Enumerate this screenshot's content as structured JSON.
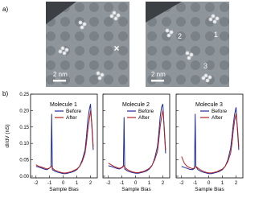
{
  "panels": [
    "a)",
    "b)"
  ],
  "images": [
    {
      "scale_bar": "2 nm",
      "marker": "×"
    },
    {
      "scale_bar": "2 nm",
      "labels": [
        "2",
        "1",
        "3"
      ]
    }
  ],
  "chart_data": [
    {
      "type": "line",
      "legend_title": "Molecule 1",
      "ylabel": "dI/dV (nS)",
      "xlabel": "Sample Bias",
      "x": [
        -2,
        -1.8,
        -1.6,
        -1.4,
        -1.2,
        -1.0,
        -0.9,
        -0.85,
        -0.8,
        -0.6,
        -0.4,
        -0.2,
        0,
        0.2,
        0.4,
        0.6,
        0.8,
        1.0,
        1.2,
        1.4,
        1.6,
        1.7,
        1.8,
        1.9,
        2.0,
        2.1,
        2.2
      ],
      "xlim": [
        -2.4,
        2.5
      ],
      "xticks": [
        -2,
        -1,
        0,
        1,
        2
      ],
      "ylim": [
        -0.005,
        0.25
      ],
      "yticks": [
        {
          "value": 0,
          "label": "0.00"
        },
        {
          "value": 0.05,
          "label": "0.05"
        },
        {
          "value": 0.1,
          "label": "0.10"
        },
        {
          "value": 0.15,
          "label": "0.15"
        },
        {
          "value": 0.2,
          "label": "0.20"
        },
        {
          "value": 0.25,
          "label": "0.25"
        }
      ],
      "series": [
        {
          "name": "Before",
          "color": "#1f2a9c",
          "values": [
            0.03,
            0.028,
            0.025,
            0.022,
            0.02,
            0.025,
            0.03,
            0.19,
            0.02,
            0.015,
            0.012,
            0.01,
            0.008,
            0.008,
            0.01,
            0.012,
            0.015,
            0.02,
            0.03,
            0.05,
            0.08,
            0.12,
            0.17,
            0.2,
            0.22,
            0.15,
            0.08
          ]
        },
        {
          "name": "After",
          "color": "#b22222",
          "values": [
            0.035,
            0.03,
            0.028,
            0.025,
            0.022,
            0.025,
            0.03,
            0.03,
            0.025,
            0.018,
            0.015,
            0.012,
            0.01,
            0.01,
            0.012,
            0.014,
            0.018,
            0.022,
            0.03,
            0.045,
            0.07,
            0.1,
            0.14,
            0.17,
            0.2,
            0.16,
            0.09
          ]
        }
      ]
    },
    {
      "type": "line",
      "legend_title": "Molecule 2",
      "xlabel": "Sample Bias",
      "x": [
        -2,
        -1.8,
        -1.6,
        -1.4,
        -1.2,
        -1.0,
        -0.9,
        -0.85,
        -0.8,
        -0.6,
        -0.4,
        -0.2,
        0,
        0.2,
        0.4,
        0.6,
        0.8,
        1.0,
        1.2,
        1.4,
        1.6,
        1.7,
        1.8,
        1.9,
        2.0,
        2.1,
        2.2
      ],
      "xlim": [
        -2.4,
        2.5
      ],
      "xticks": [
        -2,
        -1,
        0,
        1,
        2
      ],
      "ylim": [
        -0.005,
        0.25
      ],
      "yticks": [
        0,
        0.05,
        0.1,
        0.15,
        0.2,
        0.25
      ],
      "series": [
        {
          "name": "Before",
          "color": "#1f2a9c",
          "values": [
            0.032,
            0.03,
            0.027,
            0.024,
            0.022,
            0.026,
            0.03,
            0.18,
            0.022,
            0.016,
            0.013,
            0.011,
            0.009,
            0.009,
            0.011,
            0.013,
            0.016,
            0.022,
            0.032,
            0.055,
            0.09,
            0.13,
            0.18,
            0.21,
            0.22,
            0.14,
            0.07
          ]
        },
        {
          "name": "After",
          "color": "#b22222",
          "values": [
            0.04,
            0.035,
            0.03,
            0.027,
            0.024,
            0.027,
            0.032,
            0.032,
            0.027,
            0.02,
            0.016,
            0.013,
            0.011,
            0.011,
            0.013,
            0.015,
            0.019,
            0.024,
            0.033,
            0.05,
            0.075,
            0.11,
            0.15,
            0.18,
            0.2,
            0.15,
            0.08
          ]
        }
      ]
    },
    {
      "type": "line",
      "legend_title": "Molecule 3",
      "xlabel": "Sample Bias",
      "x": [
        -2,
        -1.8,
        -1.6,
        -1.4,
        -1.2,
        -1.05,
        -1.0,
        -0.95,
        -0.8,
        -0.6,
        -0.4,
        -0.2,
        0,
        0.2,
        0.4,
        0.6,
        0.8,
        1.0,
        1.2,
        1.4,
        1.6,
        1.7,
        1.8,
        1.9,
        2.0,
        2.1,
        2.2
      ],
      "xlim": [
        -2.4,
        2.5
      ],
      "xticks": [
        -2,
        -1,
        0,
        1,
        2
      ],
      "ylim": [
        -0.005,
        0.25
      ],
      "yticks": [
        0,
        0.05,
        0.1,
        0.15,
        0.2,
        0.25
      ],
      "series": [
        {
          "name": "Before",
          "color": "#1f2a9c",
          "values": [
            0.03,
            0.027,
            0.024,
            0.021,
            0.02,
            0.024,
            0.19,
            0.03,
            0.02,
            0.015,
            0.012,
            0.01,
            0.008,
            0.008,
            0.01,
            0.012,
            0.015,
            0.02,
            0.03,
            0.05,
            0.085,
            0.12,
            0.16,
            0.19,
            0.21,
            0.14,
            0.08
          ]
        },
        {
          "name": "After",
          "color": "#b22222",
          "values": [
            0.06,
            0.04,
            0.03,
            0.026,
            0.023,
            0.025,
            0.028,
            0.03,
            0.025,
            0.019,
            0.015,
            0.012,
            0.01,
            0.01,
            0.012,
            0.014,
            0.018,
            0.022,
            0.03,
            0.045,
            0.07,
            0.1,
            0.14,
            0.17,
            0.19,
            0.15,
            0.09
          ]
        }
      ]
    }
  ]
}
